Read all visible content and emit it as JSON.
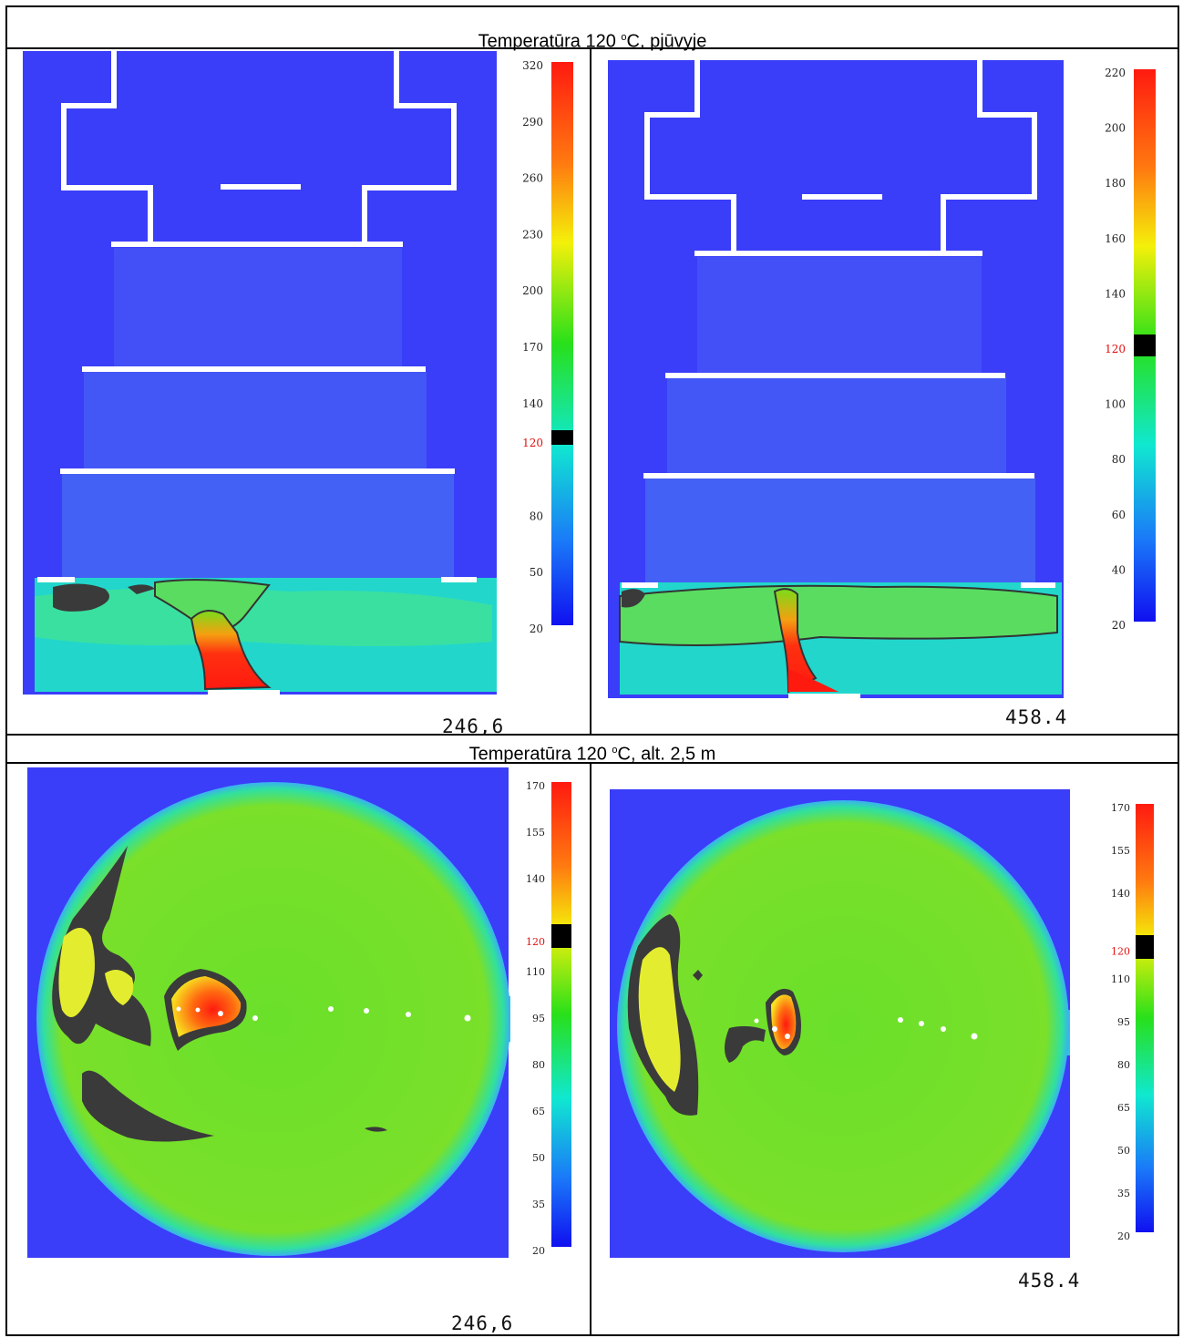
{
  "header": {
    "title_pre": "Temperatūra 120 ",
    "title_sup": "o",
    "title_post": "C, pjūvyje"
  },
  "section2": {
    "title_pre": "Temperatūra 120 ",
    "title_sup": "o",
    "title_post": "C, alt. 2,5 m"
  },
  "colors": {
    "background_blue": "#3a3ef8",
    "wall_white": "#ffffff",
    "isoline": "#333333"
  },
  "panels": [
    {
      "view": "section",
      "time": "246,6",
      "scale": [
        "320",
        "290",
        "260",
        "230",
        "200",
        "170",
        "140",
        "120",
        "80",
        "50",
        "20"
      ],
      "highlight": "120"
    },
    {
      "view": "section",
      "time": "458.4",
      "scale": [
        "220",
        "200",
        "180",
        "160",
        "140",
        "120",
        "100",
        "80",
        "60",
        "40",
        "20"
      ],
      "highlight": "120"
    },
    {
      "view": "plan",
      "time": "246,6",
      "scale": [
        "170",
        "155",
        "140",
        "120",
        "110",
        "95",
        "80",
        "65",
        "50",
        "35",
        "20"
      ],
      "highlight": "120"
    },
    {
      "view": "plan",
      "time": "458.4",
      "scale": [
        "170",
        "155",
        "140",
        "120",
        "110",
        "95",
        "80",
        "65",
        "50",
        "35",
        "20"
      ],
      "highlight": "120"
    }
  ]
}
